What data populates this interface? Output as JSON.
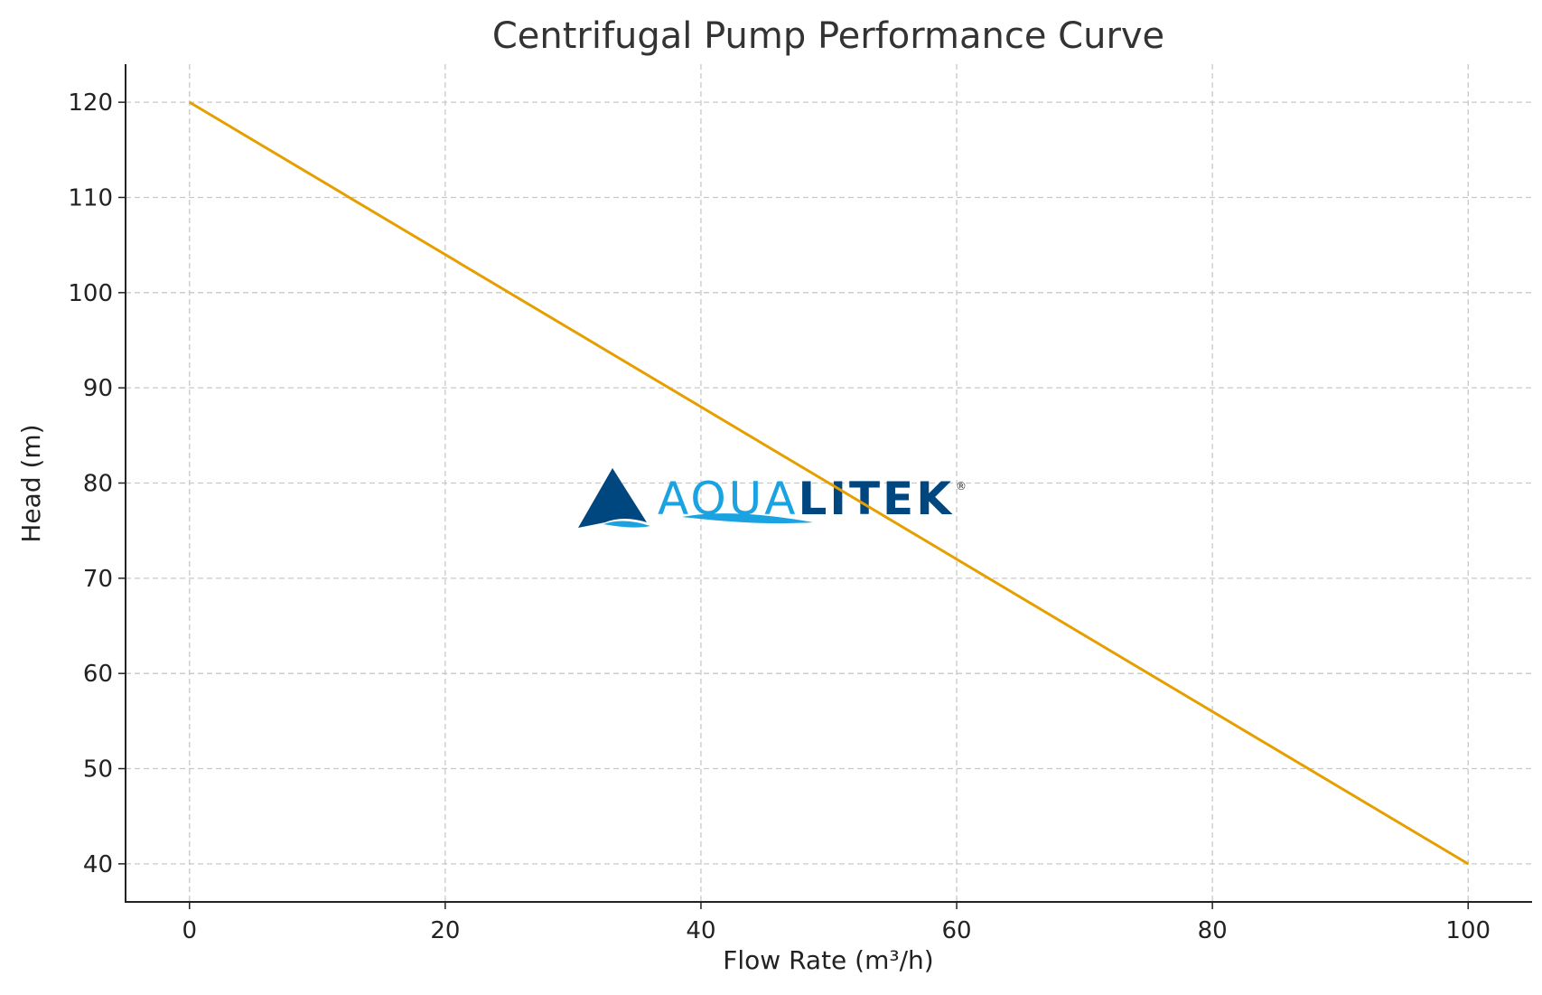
{
  "chart_data": {
    "type": "line",
    "title": "Centrifugal Pump Performance Curve",
    "xlabel": "Flow Rate (m³/h)",
    "ylabel": "Head (m)",
    "xlim": [
      -5,
      105
    ],
    "ylim": [
      36,
      124
    ],
    "xticks": [
      0,
      20,
      40,
      60,
      80,
      100
    ],
    "yticks": [
      40,
      50,
      60,
      70,
      80,
      90,
      100,
      110,
      120
    ],
    "grid": true,
    "series": [
      {
        "color": "#E69F00",
        "x": [
          0,
          100
        ],
        "y": [
          120,
          40
        ]
      }
    ]
  },
  "watermark": {
    "text_light": "AQUA",
    "text_dark": "LITEK",
    "mark": "®",
    "color_light": "#1AA3E0",
    "color_dark": "#00467F"
  }
}
